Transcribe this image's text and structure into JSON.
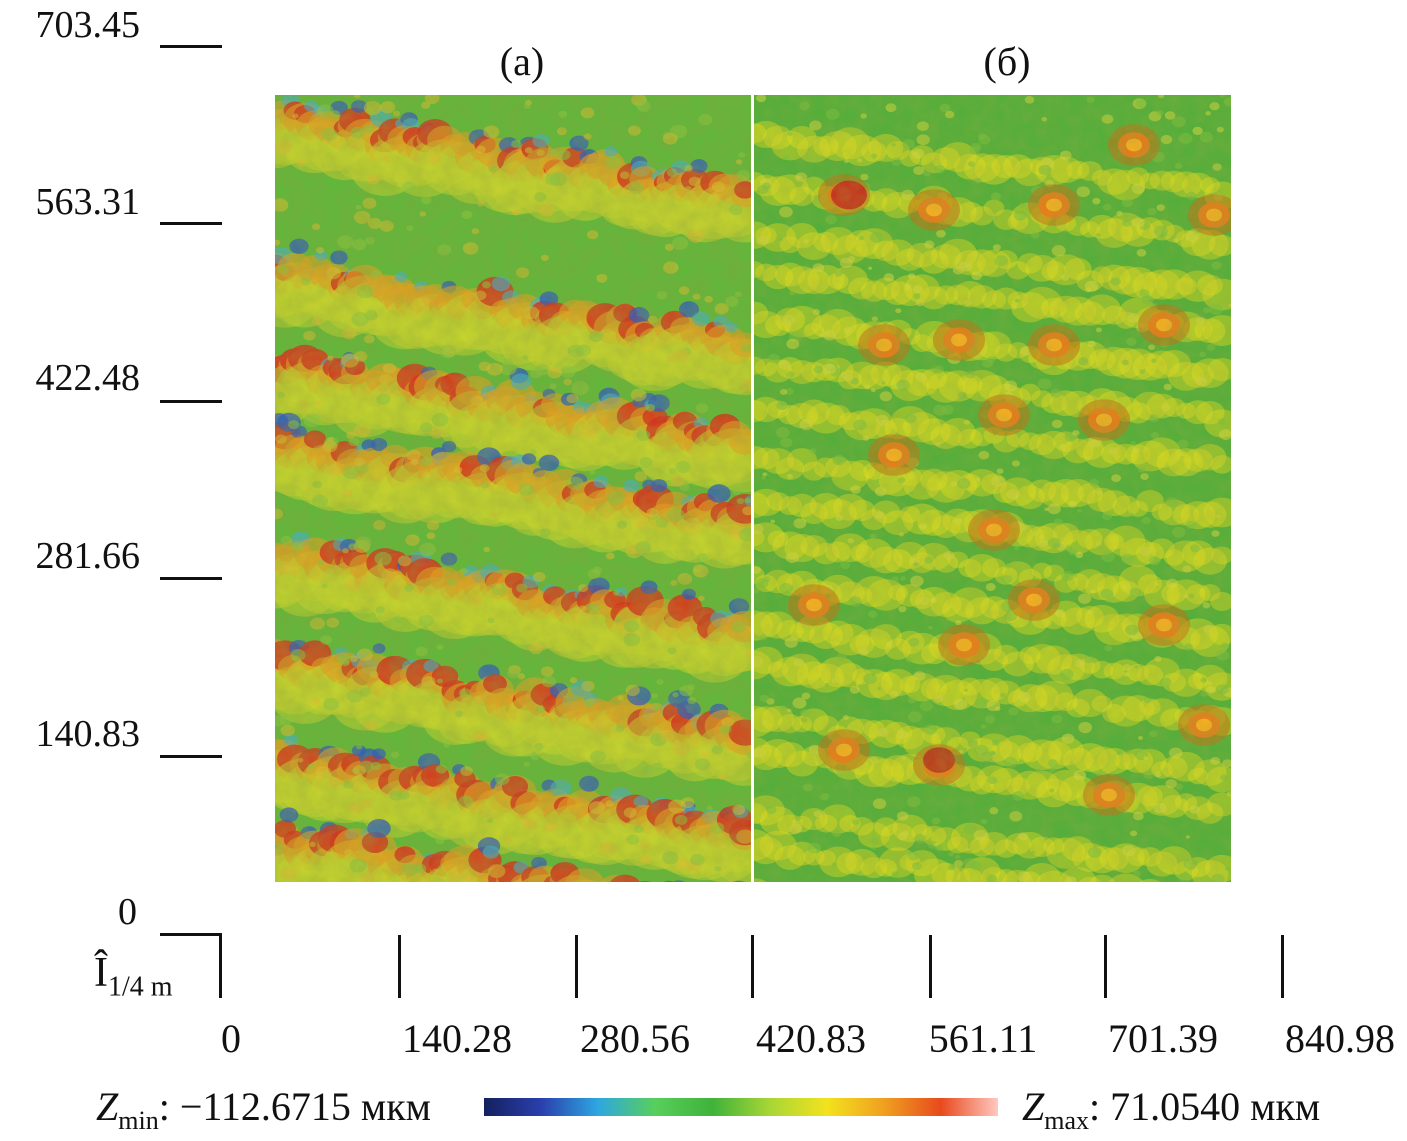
{
  "figure": {
    "panels": [
      {
        "caption": "(a)"
      },
      {
        "caption": "(б)"
      }
    ],
    "y_axis": {
      "ticks": [
        "703.45",
        "563.31",
        "422.48",
        "281.66",
        "140.83",
        "0"
      ]
    },
    "x_axis": {
      "unit_symbol": "Î",
      "unit_sub": "1/4 m",
      "ticks": [
        "0",
        "140.28",
        "280.56",
        "420.83",
        "561.11",
        "701.39",
        "840.98"
      ]
    },
    "scale": {
      "zmin_symbol": "Z",
      "zmin_sub": "min",
      "zmin_value": ": −112.6715 мкм",
      "zmax_symbol": "Z",
      "zmax_sub": "max",
      "zmax_value": ": 71.0540 мкм",
      "colors": [
        "#14205e",
        "#2a3fae",
        "#2ea7e0",
        "#58cf5c",
        "#3fb23a",
        "#a8d636",
        "#f3e21e",
        "#f0a020",
        "#e84a1e",
        "#ffc8c0"
      ]
    }
  }
}
